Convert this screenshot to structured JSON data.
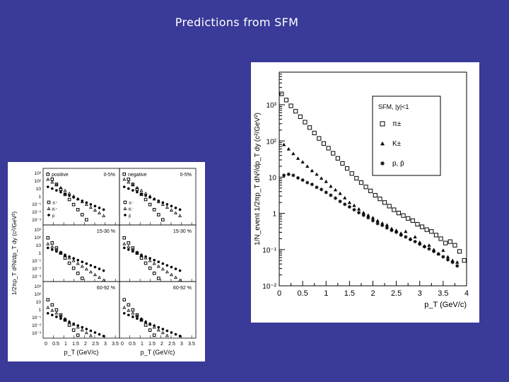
{
  "slide": {
    "title": "Predictions from SFM"
  },
  "left_figure": {
    "y_axis_label": "1/2πp_T d²N/dp_T dy (c²/GeV²)",
    "x_axis_label": "p_T (GeV/c)",
    "x_ticks": [
      "0",
      "0.5",
      "1",
      "1.5",
      "2",
      "2.5",
      "3",
      "3.5"
    ],
    "y_ticks": [
      "10³",
      "10²",
      "10",
      "1",
      "10⁻¹",
      "10⁻²",
      "10⁻³"
    ],
    "panels": [
      {
        "row": 0,
        "col": 0,
        "charge": "positive",
        "centrality": "0-5%",
        "legend": [
          "π⁺",
          "K⁺",
          "p"
        ]
      },
      {
        "row": 0,
        "col": 1,
        "charge": "negative",
        "centrality": "0-5%",
        "legend": [
          "π⁻",
          "K⁻",
          "p̄"
        ]
      },
      {
        "row": 1,
        "col": 0,
        "charge": "",
        "centrality": "15-30 %",
        "legend": []
      },
      {
        "row": 1,
        "col": 1,
        "charge": "",
        "centrality": "15-30 %",
        "legend": []
      },
      {
        "row": 2,
        "col": 0,
        "charge": "",
        "centrality": "60-92 %",
        "legend": []
      },
      {
        "row": 2,
        "col": 1,
        "charge": "",
        "centrality": "60-92 %",
        "legend": []
      }
    ]
  },
  "chart_data": [
    {
      "type": "scatter",
      "title": "",
      "xlabel": "p_T (GeV/c)",
      "ylabel": "1/N_event 1/2πp_T dN²/dp_T dy (c²/GeV²)",
      "x_ticks": [
        "0",
        "0.5",
        "1",
        "1.5",
        "2",
        "2.5",
        "3",
        "3.5",
        "4"
      ],
      "y_ticks": [
        "10⁻²",
        "10⁻¹",
        "1",
        "10",
        "10²",
        "10³"
      ],
      "xlim": [
        0,
        4
      ],
      "ylim_log10": [
        -2,
        3.9
      ],
      "legend_title": "SFM, |y|<1",
      "legend_position": "top-right",
      "series": [
        {
          "name": "π±",
          "marker": "open-square",
          "x": [
            0.05,
            0.15,
            0.25,
            0.35,
            0.45,
            0.55,
            0.65,
            0.75,
            0.85,
            0.95,
            1.05,
            1.15,
            1.25,
            1.35,
            1.45,
            1.55,
            1.65,
            1.75,
            1.85,
            1.95,
            2.05,
            2.15,
            2.25,
            2.35,
            2.45,
            2.55,
            2.65,
            2.75,
            2.85,
            2.95,
            3.05,
            3.15,
            3.25,
            3.35,
            3.45,
            3.55,
            3.65,
            3.75,
            3.85,
            3.95
          ],
          "log10y": [
            3.3,
            3.13,
            2.97,
            2.82,
            2.67,
            2.52,
            2.37,
            2.22,
            2.07,
            1.93,
            1.8,
            1.66,
            1.52,
            1.38,
            1.24,
            1.1,
            0.97,
            0.85,
            0.73,
            0.62,
            0.5,
            0.4,
            0.3,
            0.2,
            0.1,
            0.01,
            -0.06,
            -0.14,
            -0.2,
            -0.3,
            -0.37,
            -0.45,
            -0.5,
            -0.6,
            -0.7,
            -0.82,
            -0.78,
            -0.88,
            -1.05,
            -1.3
          ]
        },
        {
          "name": "K±",
          "marker": "filled-triangle",
          "x": [
            0.1,
            0.2,
            0.3,
            0.4,
            0.5,
            0.6,
            0.7,
            0.8,
            0.9,
            1.0,
            1.1,
            1.2,
            1.3,
            1.4,
            1.5,
            1.6,
            1.7,
            1.8,
            1.9,
            2.0,
            2.1,
            2.2,
            2.3,
            2.4,
            2.5,
            2.6,
            2.7,
            2.8,
            2.9,
            3.0,
            3.1,
            3.2,
            3.3,
            3.4,
            3.5,
            3.6,
            3.7,
            3.8
          ],
          "log10y": [
            1.9,
            1.78,
            1.65,
            1.52,
            1.42,
            1.3,
            1.18,
            1.08,
            0.97,
            0.88,
            0.75,
            0.65,
            0.55,
            0.43,
            0.3,
            0.22,
            0.12,
            0.02,
            -0.05,
            -0.12,
            -0.2,
            -0.27,
            -0.32,
            -0.42,
            -0.47,
            -0.55,
            -0.5,
            -0.7,
            -0.65,
            -0.8,
            -0.9,
            -0.88,
            -1.0,
            -1.12,
            -1.02,
            -1.2,
            -1.3,
            -1.35
          ]
        },
        {
          "name": "p, p̄",
          "marker": "star",
          "x": [
            0.1,
            0.2,
            0.3,
            0.4,
            0.5,
            0.6,
            0.7,
            0.8,
            0.9,
            1.0,
            1.1,
            1.2,
            1.3,
            1.4,
            1.5,
            1.6,
            1.7,
            1.8,
            1.9,
            2.0,
            2.1,
            2.2,
            2.3,
            2.4,
            2.5,
            2.6,
            2.7,
            2.8,
            2.9,
            3.0,
            3.1,
            3.2,
            3.3,
            3.4,
            3.5,
            3.6,
            3.7,
            3.8
          ],
          "log10y": [
            1.05,
            1.08,
            1.05,
            0.98,
            0.92,
            0.85,
            0.8,
            0.72,
            0.66,
            0.58,
            0.5,
            0.42,
            0.33,
            0.25,
            0.18,
            0.1,
            0.02,
            -0.05,
            -0.12,
            -0.2,
            -0.28,
            -0.33,
            -0.4,
            -0.47,
            -0.52,
            -0.6,
            -0.65,
            -0.72,
            -0.78,
            -0.85,
            -0.92,
            -0.98,
            -1.05,
            -1.12,
            -1.2,
            -1.28,
            -1.35,
            -1.45
          ]
        }
      ]
    }
  ]
}
